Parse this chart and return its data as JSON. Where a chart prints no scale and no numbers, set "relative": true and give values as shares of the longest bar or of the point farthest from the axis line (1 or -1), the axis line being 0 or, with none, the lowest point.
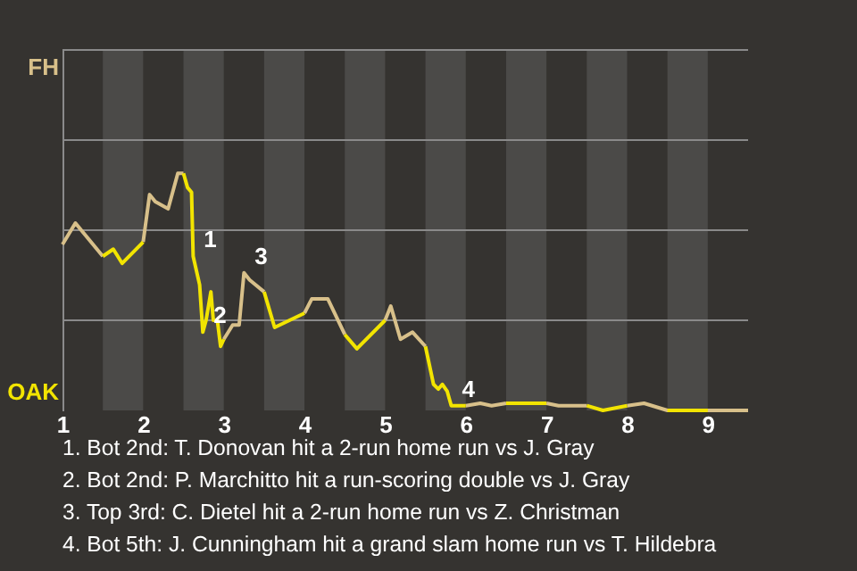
{
  "chart_data": {
    "type": "line",
    "relative": true,
    "x": [
      1,
      1.16,
      1.5,
      1.63,
      1.74,
      2,
      2.08,
      2.15,
      2.31,
      2.43,
      2.5,
      2.55,
      2.6,
      2.62,
      2.7,
      2.74,
      2.78,
      2.84,
      2.87,
      2.92,
      2.96,
      3,
      3.11,
      3.19,
      3.25,
      3.32,
      3.5,
      3.63,
      4,
      4.09,
      4.29,
      4.5,
      4.65,
      5,
      5.07,
      5.19,
      5.34,
      5.5,
      5.6,
      5.66,
      5.71,
      5.77,
      5.82,
      6,
      6.18,
      6.32,
      6.5,
      6.73,
      6.86,
      7,
      7.15,
      7.5,
      7.7,
      8,
      8.21,
      8.5,
      9,
      9.5
    ],
    "series": [
      {
        "color": "#d8c08a",
        "values": [
          0.7,
          0.79,
          0.65,
          null,
          null,
          0.71,
          0.91,
          0.88,
          0.85,
          1,
          1,
          null,
          null,
          null,
          null,
          null,
          null,
          null,
          null,
          null,
          null,
          0.3,
          0.36,
          0.36,
          0.58,
          0.55,
          0.5,
          null,
          0.41,
          0.47,
          0.47,
          0.32,
          null,
          0.38,
          0.44,
          0.3,
          0.33,
          0.27,
          null,
          null,
          null,
          null,
          null,
          0.02,
          0.03,
          0.02,
          0.03,
          null,
          null,
          0.03,
          0.02,
          0.02,
          null,
          0.02,
          0.03,
          0,
          0,
          0
        ]
      },
      {
        "color": "#f2e400",
        "values": [
          null,
          null,
          0.65,
          0.68,
          0.62,
          0.71,
          null,
          null,
          null,
          null,
          1,
          0.94,
          0.92,
          0.65,
          0.53,
          0.33,
          0.38,
          0.5,
          0.38,
          0.38,
          0.27,
          0.3,
          null,
          null,
          null,
          null,
          0.5,
          0.35,
          0.41,
          null,
          null,
          0.32,
          0.26,
          0.38,
          null,
          null,
          null,
          0.27,
          0.11,
          0.09,
          0.11,
          0.08,
          0.02,
          0.02,
          null,
          null,
          0.03,
          0.03,
          0.03,
          0.03,
          null,
          0.02,
          0,
          0.02,
          null,
          0,
          0,
          null
        ]
      }
    ],
    "xlim": [
      1,
      9.5
    ],
    "xticks": [
      1,
      2,
      3,
      4,
      5,
      6,
      7,
      8,
      9
    ],
    "ref_lines": [
      {
        "axis": "y",
        "value": 0.38,
        "color": "#8a8a8a"
      },
      {
        "axis": "y",
        "value": 0.76,
        "color": "#8a8a8a"
      },
      {
        "axis": "y",
        "value": 1.14,
        "color": "#8a8a8a"
      },
      {
        "axis": "y",
        "value": 1.52,
        "color": "#8a8a8a"
      }
    ],
    "bands": [
      {
        "axis": "x",
        "from": 1.5,
        "to": 2,
        "color": "#4b4a48"
      },
      {
        "axis": "x",
        "from": 2.5,
        "to": 3,
        "color": "#4b4a48"
      },
      {
        "axis": "x",
        "from": 3.5,
        "to": 4,
        "color": "#4b4a48"
      },
      {
        "axis": "x",
        "from": 4.5,
        "to": 5,
        "color": "#4b4a48"
      },
      {
        "axis": "x",
        "from": 5.5,
        "to": 6,
        "color": "#4b4a48"
      },
      {
        "axis": "x",
        "from": 6.5,
        "to": 7,
        "color": "#4b4a48"
      },
      {
        "axis": "x",
        "from": 7.5,
        "to": 8,
        "color": "#4b4a48"
      },
      {
        "axis": "x",
        "from": 8.5,
        "to": 9,
        "color": "#4b4a48"
      }
    ],
    "annotations": [
      "FH",
      "OAK",
      {
        "text": "1",
        "x": 2.62,
        "y": 0.65
      },
      {
        "text": "2",
        "x": 2.74,
        "y": 0.33
      },
      {
        "text": "3",
        "x": 3.25,
        "y": 0.58
      },
      {
        "text": "4",
        "x": 5.82,
        "y": 0.02
      },
      "1. Bot 2nd: T. Donovan hit a 2-run home run vs J. Gray",
      "2. Bot 2nd: P. Marchitto hit a run-scoring double vs J. Gray",
      "3. Top 3rd: C. Dietel hit a 2-run home run vs Z. Christman",
      "4. Bot 5th: J. Cunningham hit a grand slam home run vs T. Hildebra"
    ]
  }
}
